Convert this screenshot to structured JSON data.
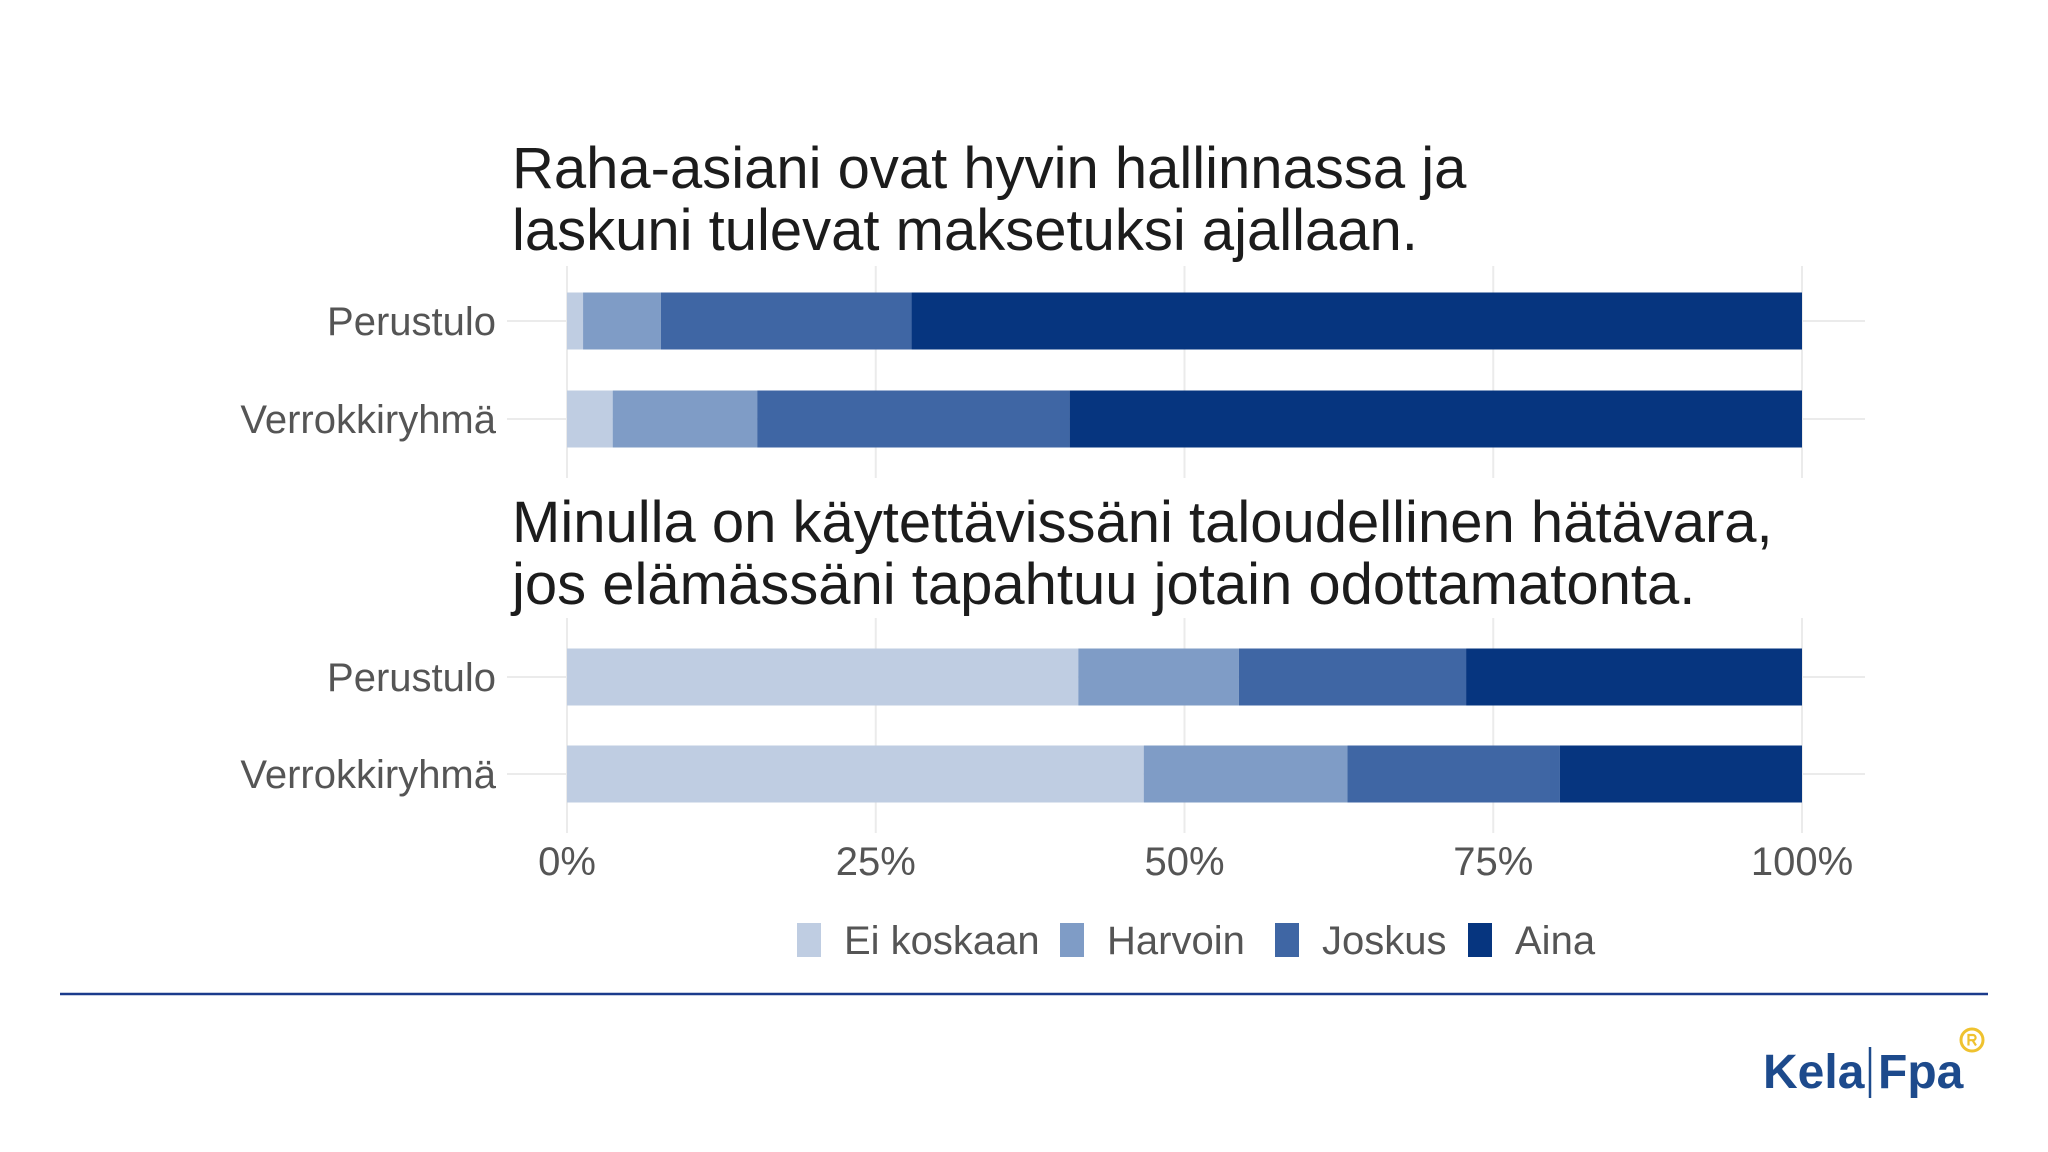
{
  "chart_data": {
    "type": "bar",
    "orientation": "horizontal",
    "stacked": true,
    "xlim": [
      0,
      100
    ],
    "xticks": [
      0,
      25,
      50,
      75,
      100
    ],
    "xtick_labels": [
      "0%",
      "25%",
      "50%",
      "75%",
      "100%"
    ],
    "grid": true,
    "legend_position": "bottom",
    "series": [
      {
        "name": "Ei koskaan",
        "color": "#bfcde2"
      },
      {
        "name": "Harvoin",
        "color": "#7f9cc6"
      },
      {
        "name": "Joskus",
        "color": "#3f66a4"
      },
      {
        "name": "Aina",
        "color": "#06357f"
      }
    ],
    "panels": [
      {
        "title": "Raha-asiani ovat hyvin hallinnassa ja\nlaskuni tulevat maksetuksi ajallaan.",
        "categories": [
          "Perustulo",
          "Verrokkiryhmä"
        ],
        "values": {
          "Ei koskaan": [
            1.3,
            3.7
          ],
          "Harvoin": [
            6.3,
            11.7
          ],
          "Joskus": [
            20.3,
            25.3
          ],
          "Aina": [
            72.1,
            59.3
          ]
        }
      },
      {
        "title": "Minulla on käytettävissäni taloudellinen hätävara,\njos elämässäni tapahtuu jotain odottamatonta.",
        "categories": [
          "Perustulo",
          "Verrokkiryhmä"
        ],
        "values": {
          "Ei koskaan": [
            41.4,
            46.7
          ],
          "Harvoin": [
            13.0,
            16.5
          ],
          "Joskus": [
            18.4,
            17.2
          ],
          "Aina": [
            27.2,
            19.6
          ]
        }
      }
    ]
  },
  "footer": {
    "divider_color": "#1b3b8c",
    "logo": {
      "text_fi": "Kela",
      "text_sv": "Fpa",
      "color": "#1d4a8c",
      "badge_icon": "registered-badge-icon",
      "badge_color": "#efc22f"
    }
  }
}
